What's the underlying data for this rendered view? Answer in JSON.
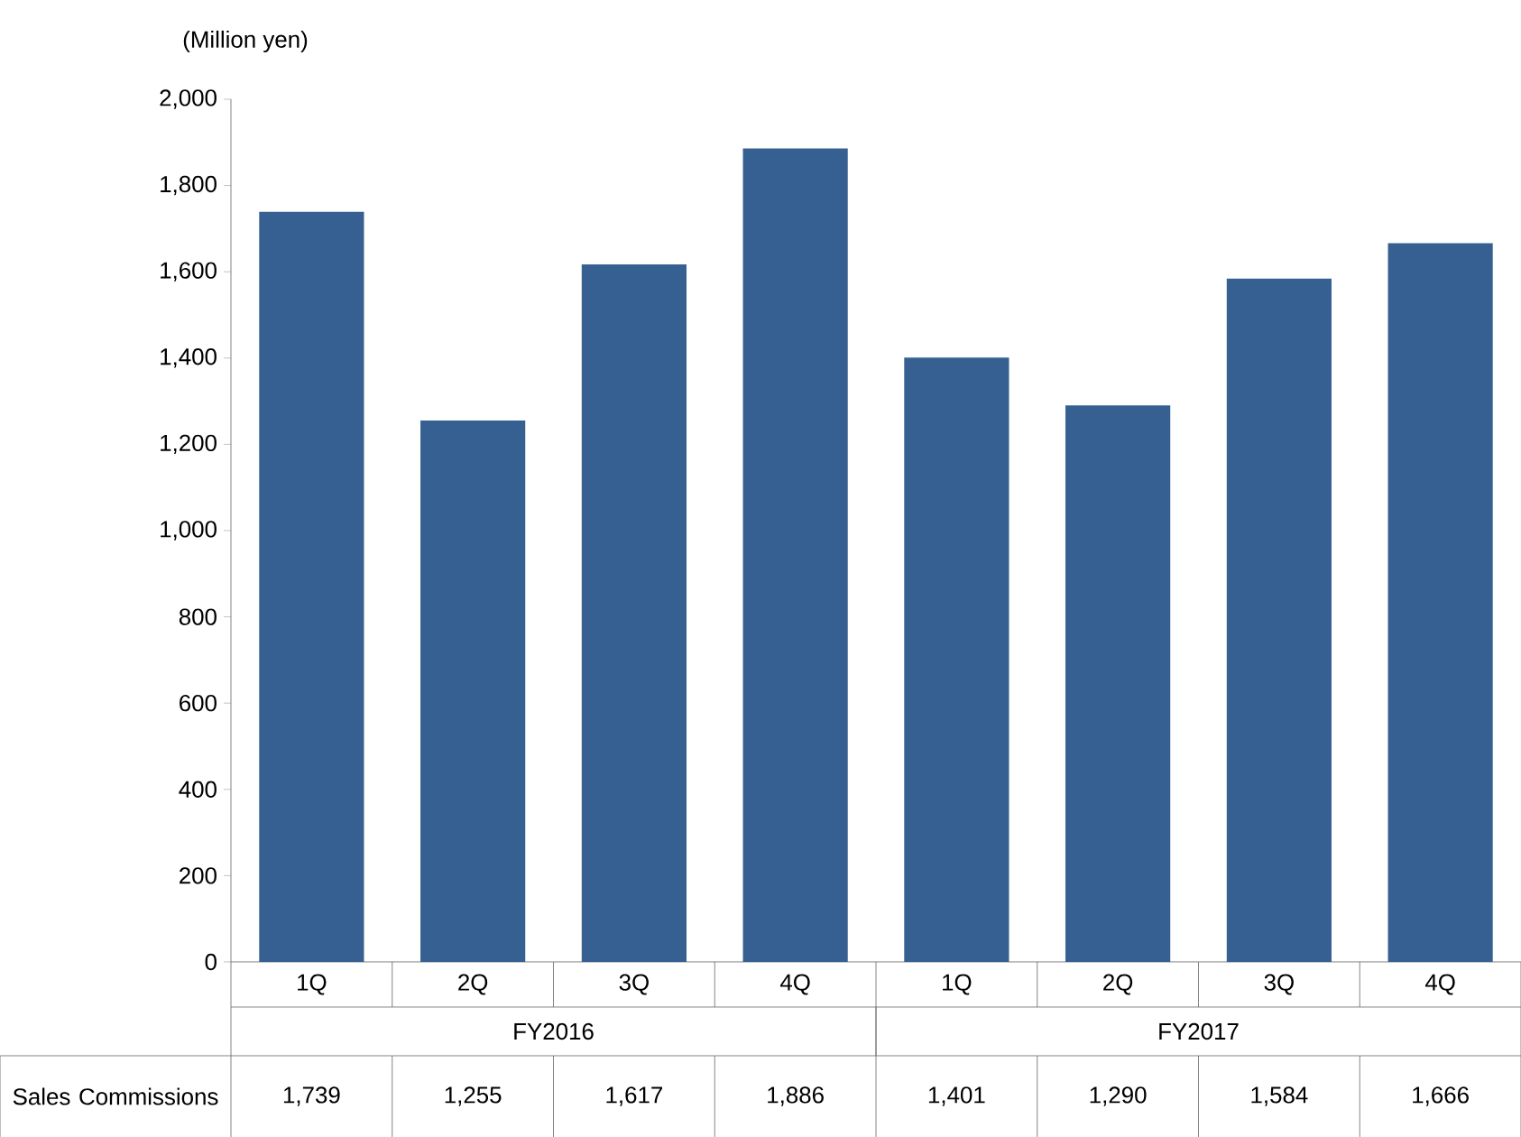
{
  "chart_data": {
    "type": "bar",
    "ylabel": "(Million yen)",
    "categories": [
      "1Q",
      "2Q",
      "3Q",
      "4Q",
      "1Q",
      "2Q",
      "3Q",
      "4Q"
    ],
    "series": [
      {
        "name": "Sales Commissions",
        "color": "#366092",
        "values": [
          1739,
          1255,
          1617,
          1886,
          1401,
          1290,
          1584,
          1666
        ],
        "value_labels": [
          "1,739",
          "1,255",
          "1,617",
          "1,886",
          "1,401",
          "1,290",
          "1,584",
          "1,666"
        ]
      }
    ],
    "ylim": [
      0,
      2000
    ],
    "yticks": [
      0,
      200,
      400,
      600,
      800,
      {
        "value": 1000,
        "label": "1,000"
      },
      {
        "value": 1200,
        "label": "1,200"
      },
      {
        "value": 1400,
        "label": "1,400"
      },
      {
        "value": 1600,
        "label": "1,600"
      },
      {
        "value": 1800,
        "label": "1,800"
      },
      {
        "value": 2000,
        "label": "2,000"
      }
    ],
    "annotations": [
      "FY2016",
      "FY2017"
    ]
  }
}
